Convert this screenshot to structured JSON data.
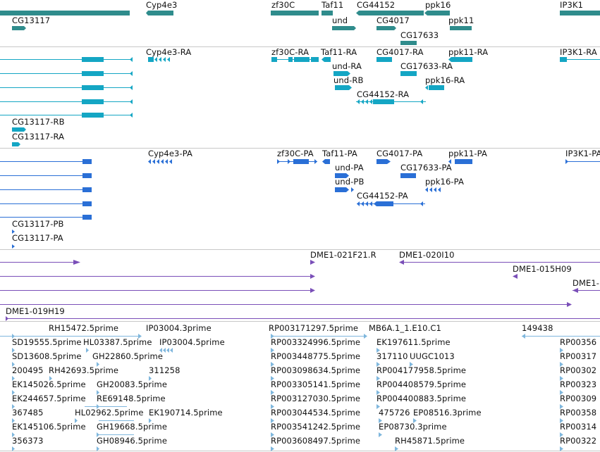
{
  "colors": {
    "gene": "#2f8c8c",
    "transcript": "#14a6c4",
    "cds": "#2a6fd6",
    "clone": "#7a4fb8",
    "est": "#7fb7dd",
    "separator": "#c8c8c8"
  },
  "tracks": {
    "genes": {
      "labels": [
        "CG13117",
        "Cyp4e3",
        "zf30C",
        "Taf11",
        "CG44152",
        "ppk16",
        "IP3K1",
        "und",
        "CG4017",
        "ppk11",
        "CG17633"
      ]
    },
    "transcripts": {
      "labels": [
        "Cyp4e3-RA",
        "zf30C-RA",
        "Taf11-RA",
        "CG4017-RA",
        "ppk11-RA",
        "IP3K1-RA",
        "und-RA",
        "CG17633-RA",
        "und-RB",
        "ppk16-RA",
        "CG44152-RA",
        "CG13117-RB",
        "CG13117-RA"
      ]
    },
    "cds": {
      "labels": [
        "Cyp4e3-PA",
        "zf30C-PA",
        "Taf11-PA",
        "CG4017-PA",
        "ppk11-PA",
        "IP3K1-PA",
        "und-PA",
        "CG17633-PA",
        "und-PB",
        "ppk16-PA",
        "CG44152-PA",
        "CG13117-PB",
        "CG13117-PA"
      ]
    },
    "clones": {
      "labels": [
        "DME1-021F21.R",
        "DME1-020I10",
        "DME1-015H09",
        "DME1-",
        "DME1-019H19"
      ]
    },
    "ests": {
      "labels": [
        "RH15472.5prime",
        "IP03004.3prime",
        "RP003171297.5prime",
        "MB6A.1_1.E10.C1",
        "149438",
        "SD19555.5prime",
        "HL03387.5prime",
        "IP03004.5prime",
        "RP003324996.5prime",
        "EK197611.5prime",
        "RP00356",
        "SD13608.5prime",
        "GH22860.5prime",
        "RP003448775.5prime",
        "317110",
        "UUGC1013",
        "RP00317",
        "200495",
        "RH42693.5prime",
        "311258",
        "RP003098634.5prime",
        "RP004177958.5prime",
        "RP00302",
        "EK145026.5prime",
        "GH20083.5prime",
        "RP003305141.5prime",
        "RP004408579.5prime",
        "RP00323",
        "EK244657.5prime",
        "RE69148.5prime",
        "RP003127030.5prime",
        "RP004400883.5prime",
        "RP00309",
        "367485",
        "HL02962.5prime",
        "EK190714.5prime",
        "RP003044534.5prime",
        "475726",
        "EP08516.3prime",
        "RP00358",
        "EK145106.5prime",
        "GH19668.5prime",
        "RP003541242.5prime",
        "EP08730.3prime",
        "RP00314",
        "356373",
        "GH08946.5prime",
        "RP003608497.5prime",
        "RH45871.5prime",
        "RP00322"
      ]
    }
  }
}
